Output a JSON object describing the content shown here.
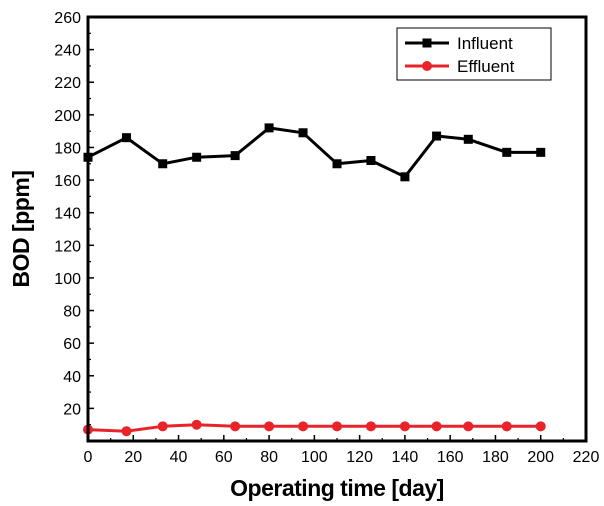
{
  "chart_data": {
    "type": "line",
    "xlabel": "Operating time [day]",
    "ylabel": "BOD [ppm]",
    "xlim": [
      0,
      220
    ],
    "ylim": [
      0,
      260
    ],
    "xticks": [
      0,
      20,
      40,
      60,
      80,
      100,
      120,
      140,
      160,
      180,
      200,
      220
    ],
    "yticks": [
      20,
      40,
      60,
      80,
      100,
      120,
      140,
      160,
      180,
      200,
      220,
      240,
      260
    ],
    "legend_position": "top-right",
    "grid": false,
    "series": [
      {
        "name": "Influent",
        "color": "#000000",
        "marker": "square",
        "x": [
          0,
          17,
          33,
          48,
          65,
          80,
          95,
          110,
          125,
          140,
          154,
          168,
          185,
          200
        ],
        "y": [
          174,
          186,
          170,
          174,
          175,
          192,
          189,
          170,
          172,
          162,
          187,
          185,
          177,
          177
        ]
      },
      {
        "name": "Effluent",
        "color": "#e8232a",
        "marker": "circle",
        "x": [
          0,
          17,
          33,
          48,
          65,
          80,
          95,
          110,
          125,
          140,
          154,
          168,
          185,
          200
        ],
        "y": [
          7,
          6,
          9,
          10,
          9,
          9,
          9,
          9,
          9,
          9,
          9,
          9,
          9,
          9
        ]
      }
    ]
  }
}
